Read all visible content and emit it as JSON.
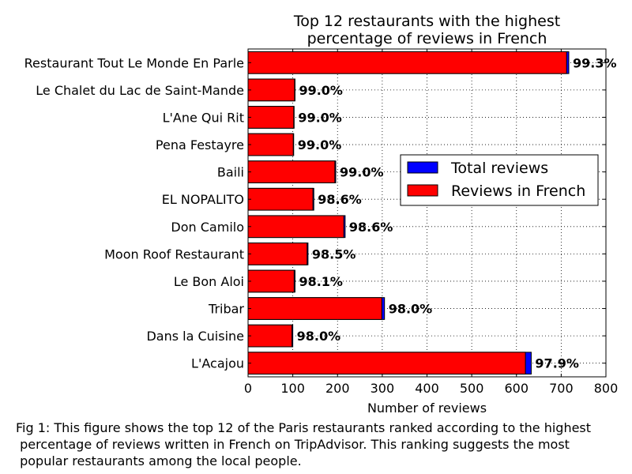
{
  "chart_data": {
    "type": "bar",
    "orientation": "horizontal",
    "title": "Top 12 restaurants with the highest\npercentage of reviews in French",
    "xlabel": "Number of reviews",
    "ylabel": "",
    "xlim": [
      0,
      800
    ],
    "x_ticks": [
      0,
      100,
      200,
      300,
      400,
      500,
      600,
      700,
      800
    ],
    "grid": true,
    "legend_position": "right",
    "categories": [
      "Restaurant Tout Le Monde En Parle",
      "Le Chalet du Lac de Saint-Mande",
      "L'Ane Qui Rit",
      "Pena Festayre",
      "Baili",
      "EL NOPALITO",
      "Don Camilo",
      "Moon Roof Restaurant",
      "Le Bon Aloi",
      "Tribar",
      "Dans la Cuisine",
      "L'Acajou"
    ],
    "series": [
      {
        "name": "Total reviews",
        "color": "#0000ff",
        "values": [
          717,
          105,
          103,
          102,
          196,
          147,
          217,
          134,
          105,
          305,
          100,
          633
        ]
      },
      {
        "name": "Reviews in French",
        "color": "#ff0000",
        "values": [
          712,
          104,
          102,
          101,
          194,
          145,
          214,
          132,
          103,
          299,
          98,
          620
        ]
      }
    ],
    "data_labels": [
      "99.3%",
      "99.0%",
      "99.0%",
      "99.0%",
      "99.0%",
      "98.6%",
      "98.6%",
      "98.5%",
      "98.1%",
      "98.0%",
      "98.0%",
      "97.9%"
    ]
  },
  "caption": "Fig 1: This figure shows the top 12 of the Paris restaurants ranked according to the highest\n percentage of reviews written in French on TripAdvisor. This ranking suggests the most\n popular restaurants among the local people."
}
